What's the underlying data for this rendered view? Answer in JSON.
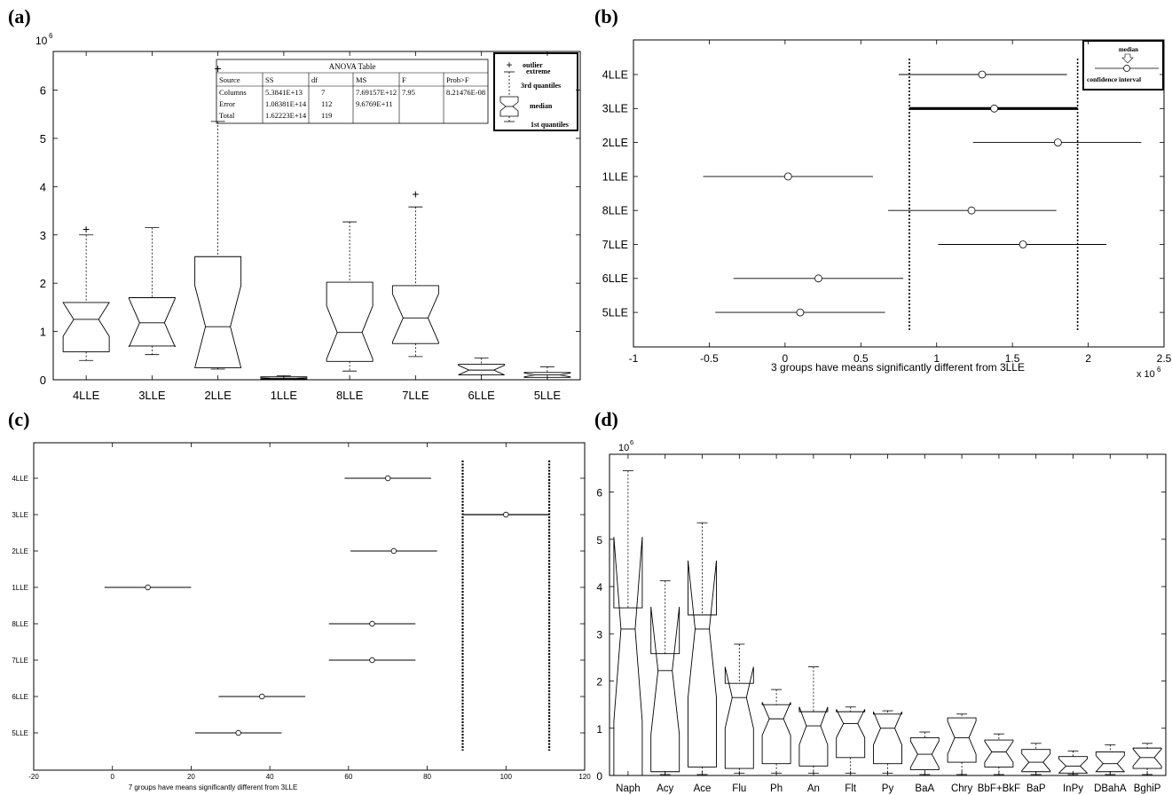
{
  "panels": {
    "a": {
      "label": "(a)"
    },
    "b": {
      "label": "(b)"
    },
    "c": {
      "label": "(c)"
    },
    "d": {
      "label": "(d)"
    }
  },
  "anova": {
    "title": "ANOVA Table",
    "headers": [
      "Source",
      "SS",
      "df",
      "MS",
      "F",
      "Prob>F"
    ],
    "rows": [
      [
        "Columns",
        "5.3841E+13",
        "7",
        "7.69157E+12",
        "7.95",
        "8.21476E-08"
      ],
      [
        "Error",
        "1.08381E+14",
        "112",
        "9.6769E+11",
        "",
        ""
      ],
      [
        "Total",
        "1.62223E+14",
        "119",
        "",
        "",
        ""
      ]
    ]
  },
  "legend_a": {
    "outlier": "outlier",
    "extreme": "extreme",
    "third": "3rd quantiles",
    "median": "median",
    "first": "1st quantiles"
  },
  "legend_b": {
    "median": "median",
    "ci": "confidence interval"
  },
  "chart_data": [
    {
      "panel": "a",
      "type": "box",
      "exponent_label": "10",
      "exponent": "6",
      "categories": [
        "4LLE",
        "3LLE",
        "2LLE",
        "1LLE",
        "8LLE",
        "7LLE",
        "6LLE",
        "5LLE"
      ],
      "boxes": [
        {
          "min": 0.4,
          "q1": 0.58,
          "median": 1.25,
          "q3": 1.6,
          "max": 3.0,
          "notch": 0.35,
          "outliers": [
            3.12
          ]
        },
        {
          "min": 0.52,
          "q1": 0.7,
          "median": 1.18,
          "q3": 1.7,
          "max": 3.15,
          "notch": 0.5,
          "outliers": []
        },
        {
          "min": 0.22,
          "q1": 0.25,
          "median": 1.1,
          "q3": 2.55,
          "max": 5.35,
          "notch": 0.85,
          "outliers": [
            6.45
          ]
        },
        {
          "min": 0.0,
          "q1": 0.01,
          "median": 0.03,
          "q3": 0.06,
          "max": 0.08,
          "notch": 0.01,
          "outliers": []
        },
        {
          "min": 0.18,
          "q1": 0.38,
          "median": 0.98,
          "q3": 2.02,
          "max": 3.27,
          "notch": 0.55,
          "outliers": []
        },
        {
          "min": 0.48,
          "q1": 0.75,
          "median": 1.28,
          "q3": 1.95,
          "max": 3.58,
          "notch": 0.5,
          "outliers": [
            3.85
          ]
        },
        {
          "min": 0.0,
          "q1": 0.1,
          "median": 0.2,
          "q3": 0.32,
          "max": 0.45,
          "notch": 0.1,
          "outliers": []
        },
        {
          "min": 0.0,
          "q1": 0.05,
          "median": 0.1,
          "q3": 0.15,
          "max": 0.27,
          "notch": 0.04,
          "outliers": []
        }
      ],
      "ylim": [
        0,
        6.8
      ],
      "yticks": [
        0,
        1,
        2,
        3,
        4,
        5,
        6
      ]
    },
    {
      "panel": "b",
      "type": "interval",
      "xlabel": "3 groups have means significantly different from 3LLE",
      "x_exponent_label": "x 10",
      "x_exponent": "6",
      "categories": [
        "4LLE",
        "3LLE",
        "2LLE",
        "1LLE",
        "8LLE",
        "7LLE",
        "6LLE",
        "5LLE"
      ],
      "means": [
        1.3,
        1.38,
        1.8,
        0.02,
        1.23,
        1.57,
        0.22,
        0.1
      ],
      "lows": [
        0.75,
        0.82,
        1.24,
        -0.54,
        0.68,
        1.01,
        -0.34,
        -0.46
      ],
      "highs": [
        1.86,
        1.93,
        2.35,
        0.58,
        1.79,
        2.12,
        0.78,
        0.66
      ],
      "highlight": "3LLE",
      "reference_lines": [
        0.82,
        1.93
      ],
      "xlim": [
        -1,
        2.5
      ],
      "xticks": [
        "-1",
        "-0.5",
        "0",
        "0.5",
        "1",
        "1.5",
        "2",
        "2.5"
      ]
    },
    {
      "panel": "c",
      "type": "interval",
      "xlabel": "7 groups have means significantly different from 3LLE",
      "categories": [
        "4LLE",
        "3LLE",
        "2LLE",
        "1LLE",
        "8LLE",
        "7LLE",
        "6LLE",
        "5LLE"
      ],
      "means": [
        70,
        100,
        71.5,
        9,
        66,
        66,
        38,
        32
      ],
      "lows": [
        59,
        89,
        60.5,
        -2,
        55,
        55,
        27,
        21
      ],
      "highs": [
        81,
        111,
        82.5,
        20,
        77,
        77,
        49,
        43
      ],
      "highlight": "3LLE",
      "reference_lines": [
        89,
        111
      ],
      "xlim": [
        -20,
        120
      ],
      "xticks": [
        "-20",
        "0",
        "20",
        "40",
        "60",
        "80",
        "100",
        "120"
      ]
    },
    {
      "panel": "d",
      "type": "box",
      "exponent_label": "10",
      "exponent": "6",
      "categories": [
        "Naph",
        "Acy",
        "Ace",
        "Flu",
        "Ph",
        "An",
        "Flt",
        "Py",
        "BaA",
        "Chry",
        "BbF+BkF",
        "BaP",
        "InPy",
        "DBahA",
        "BghiP"
      ],
      "boxes": [
        {
          "min": 0.0,
          "q1": 0.0,
          "median": 3.1,
          "q3": 3.55,
          "max": 6.45,
          "notch": 1.95
        },
        {
          "min": 0.02,
          "q1": 0.08,
          "median": 2.22,
          "q3": 2.58,
          "max": 4.12,
          "notch": 1.35
        },
        {
          "min": 0.02,
          "q1": 0.18,
          "median": 3.1,
          "q3": 3.4,
          "max": 5.35,
          "notch": 1.45
        },
        {
          "min": 0.05,
          "q1": 0.15,
          "median": 1.65,
          "q3": 1.95,
          "max": 2.78,
          "notch": 0.65
        },
        {
          "min": 0.05,
          "q1": 0.25,
          "median": 1.2,
          "q3": 1.5,
          "max": 1.82,
          "notch": 0.35
        },
        {
          "min": 0.05,
          "q1": 0.2,
          "median": 1.05,
          "q3": 1.35,
          "max": 2.3,
          "notch": 0.4
        },
        {
          "min": 0.05,
          "q1": 0.38,
          "median": 1.1,
          "q3": 1.35,
          "max": 1.45,
          "notch": 0.3
        },
        {
          "min": 0.05,
          "q1": 0.25,
          "median": 1.0,
          "q3": 1.3,
          "max": 1.37,
          "notch": 0.35
        },
        {
          "min": 0.02,
          "q1": 0.12,
          "median": 0.45,
          "q3": 0.8,
          "max": 0.92,
          "notch": 0.28
        },
        {
          "min": 0.02,
          "q1": 0.28,
          "median": 0.8,
          "q3": 1.22,
          "max": 1.3,
          "notch": 0.35
        },
        {
          "min": 0.02,
          "q1": 0.18,
          "median": 0.5,
          "q3": 0.75,
          "max": 0.88,
          "notch": 0.22
        },
        {
          "min": 0.02,
          "q1": 0.08,
          "median": 0.28,
          "q3": 0.55,
          "max": 0.68,
          "notch": 0.18
        },
        {
          "min": 0.02,
          "q1": 0.05,
          "median": 0.2,
          "q3": 0.4,
          "max": 0.52,
          "notch": 0.15
        },
        {
          "min": 0.02,
          "q1": 0.08,
          "median": 0.25,
          "q3": 0.5,
          "max": 0.65,
          "notch": 0.17
        },
        {
          "min": 0.02,
          "q1": 0.15,
          "median": 0.38,
          "q3": 0.58,
          "max": 0.68,
          "notch": 0.18
        }
      ],
      "ylim": [
        0,
        6.8
      ],
      "yticks": [
        0,
        1,
        2,
        3,
        4,
        5,
        6
      ]
    }
  ]
}
